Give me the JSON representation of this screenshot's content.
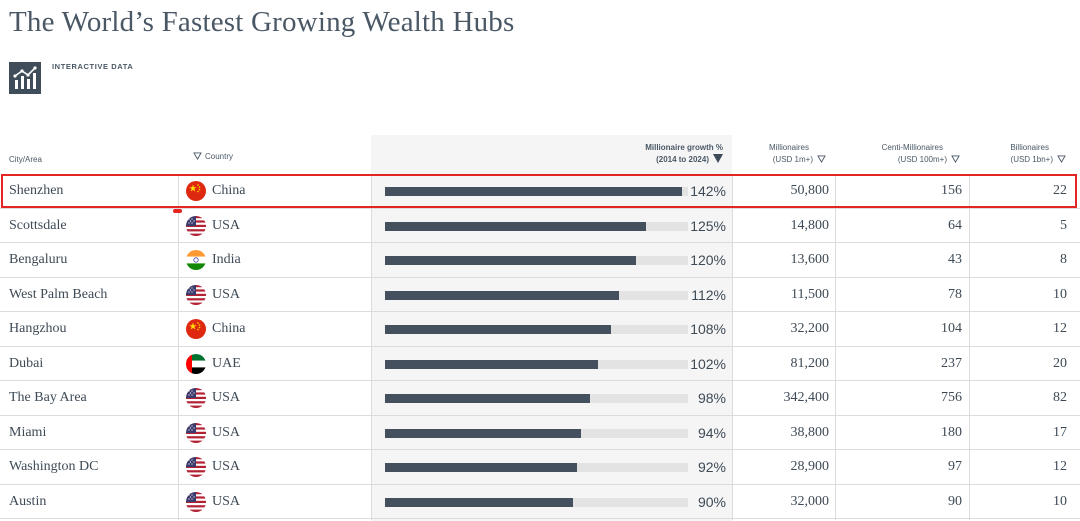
{
  "page": {
    "title": "The World’s Fastest Growing Wealth Hubs",
    "interactive_label": "INTERACTIVE DATA"
  },
  "headers": {
    "city": "City/Area",
    "country": "Country",
    "growth_line1": "Millionaire growth %",
    "growth_line2": "(2014 to 2024)",
    "millionaires_line1": "Millionaires",
    "millionaires_line2": "(USD 1m+)",
    "centi_line1": "Centi-Millionaires",
    "centi_line2": "(USD 100m+)",
    "billionaires_line1": "Billionaires",
    "billionaires_line2": "(USD 1bn+)"
  },
  "colors": {
    "bar": "#44505d",
    "track": "#e3e3e3",
    "highlight": "#e52521"
  },
  "rows": [
    {
      "city": "Shenzhen",
      "country": "China",
      "flag": "china-flag-icon",
      "growth": 142,
      "growth_label": "142%",
      "millionaires": "50,800",
      "centi": "156",
      "billionaires": "22"
    },
    {
      "city": "Scottsdale",
      "country": "USA",
      "flag": "usa-flag-icon",
      "growth": 125,
      "growth_label": "125%",
      "millionaires": "14,800",
      "centi": "64",
      "billionaires": "5"
    },
    {
      "city": "Bengaluru",
      "country": "India",
      "flag": "india-flag-icon",
      "growth": 120,
      "growth_label": "120%",
      "millionaires": "13,600",
      "centi": "43",
      "billionaires": "8"
    },
    {
      "city": "West Palm Beach",
      "country": "USA",
      "flag": "usa-flag-icon",
      "growth": 112,
      "growth_label": "112%",
      "millionaires": "11,500",
      "centi": "78",
      "billionaires": "10"
    },
    {
      "city": "Hangzhou",
      "country": "China",
      "flag": "china-flag-icon",
      "growth": 108,
      "growth_label": "108%",
      "millionaires": "32,200",
      "centi": "104",
      "billionaires": "12"
    },
    {
      "city": "Dubai",
      "country": "UAE",
      "flag": "uae-flag-icon",
      "growth": 102,
      "growth_label": "102%",
      "millionaires": "81,200",
      "centi": "237",
      "billionaires": "20"
    },
    {
      "city": "The Bay Area",
      "country": "USA",
      "flag": "usa-flag-icon",
      "growth": 98,
      "growth_label": "98%",
      "millionaires": "342,400",
      "centi": "756",
      "billionaires": "82"
    },
    {
      "city": "Miami",
      "country": "USA",
      "flag": "usa-flag-icon",
      "growth": 94,
      "growth_label": "94%",
      "millionaires": "38,800",
      "centi": "180",
      "billionaires": "17"
    },
    {
      "city": "Washington DC",
      "country": "USA",
      "flag": "usa-flag-icon",
      "growth": 92,
      "growth_label": "92%",
      "millionaires": "28,900",
      "centi": "97",
      "billionaires": "12"
    },
    {
      "city": "Austin",
      "country": "USA",
      "flag": "usa-flag-icon",
      "growth": 90,
      "growth_label": "90%",
      "millionaires": "32,000",
      "centi": "90",
      "billionaires": "10"
    }
  ]
}
